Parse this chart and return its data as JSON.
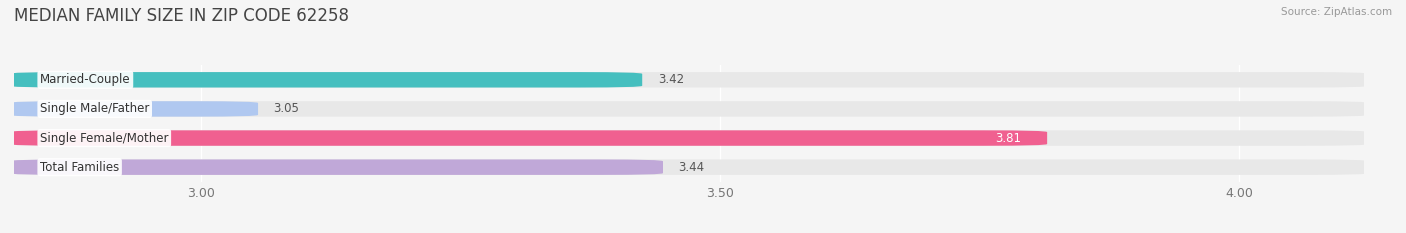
{
  "title": "MEDIAN FAMILY SIZE IN ZIP CODE 62258",
  "source": "Source: ZipAtlas.com",
  "categories": [
    "Married-Couple",
    "Single Male/Father",
    "Single Female/Mother",
    "Total Families"
  ],
  "values": [
    3.42,
    3.05,
    3.81,
    3.44
  ],
  "bar_colors": [
    "#45bfbf",
    "#b0c8f0",
    "#f06090",
    "#c0a8d8"
  ],
  "value_colors": [
    "#555555",
    "#555555",
    "#ffffff",
    "#555555"
  ],
  "xlim": [
    2.82,
    4.12
  ],
  "xticks": [
    3.0,
    3.5,
    4.0
  ],
  "xtick_labels": [
    "3.00",
    "3.50",
    "4.00"
  ],
  "bar_height": 0.52,
  "background_color": "#f5f5f5",
  "bar_bg_color": "#e8e8e8",
  "title_fontsize": 12,
  "tick_fontsize": 9,
  "value_fontsize": 8.5,
  "label_fontsize": 8.5
}
